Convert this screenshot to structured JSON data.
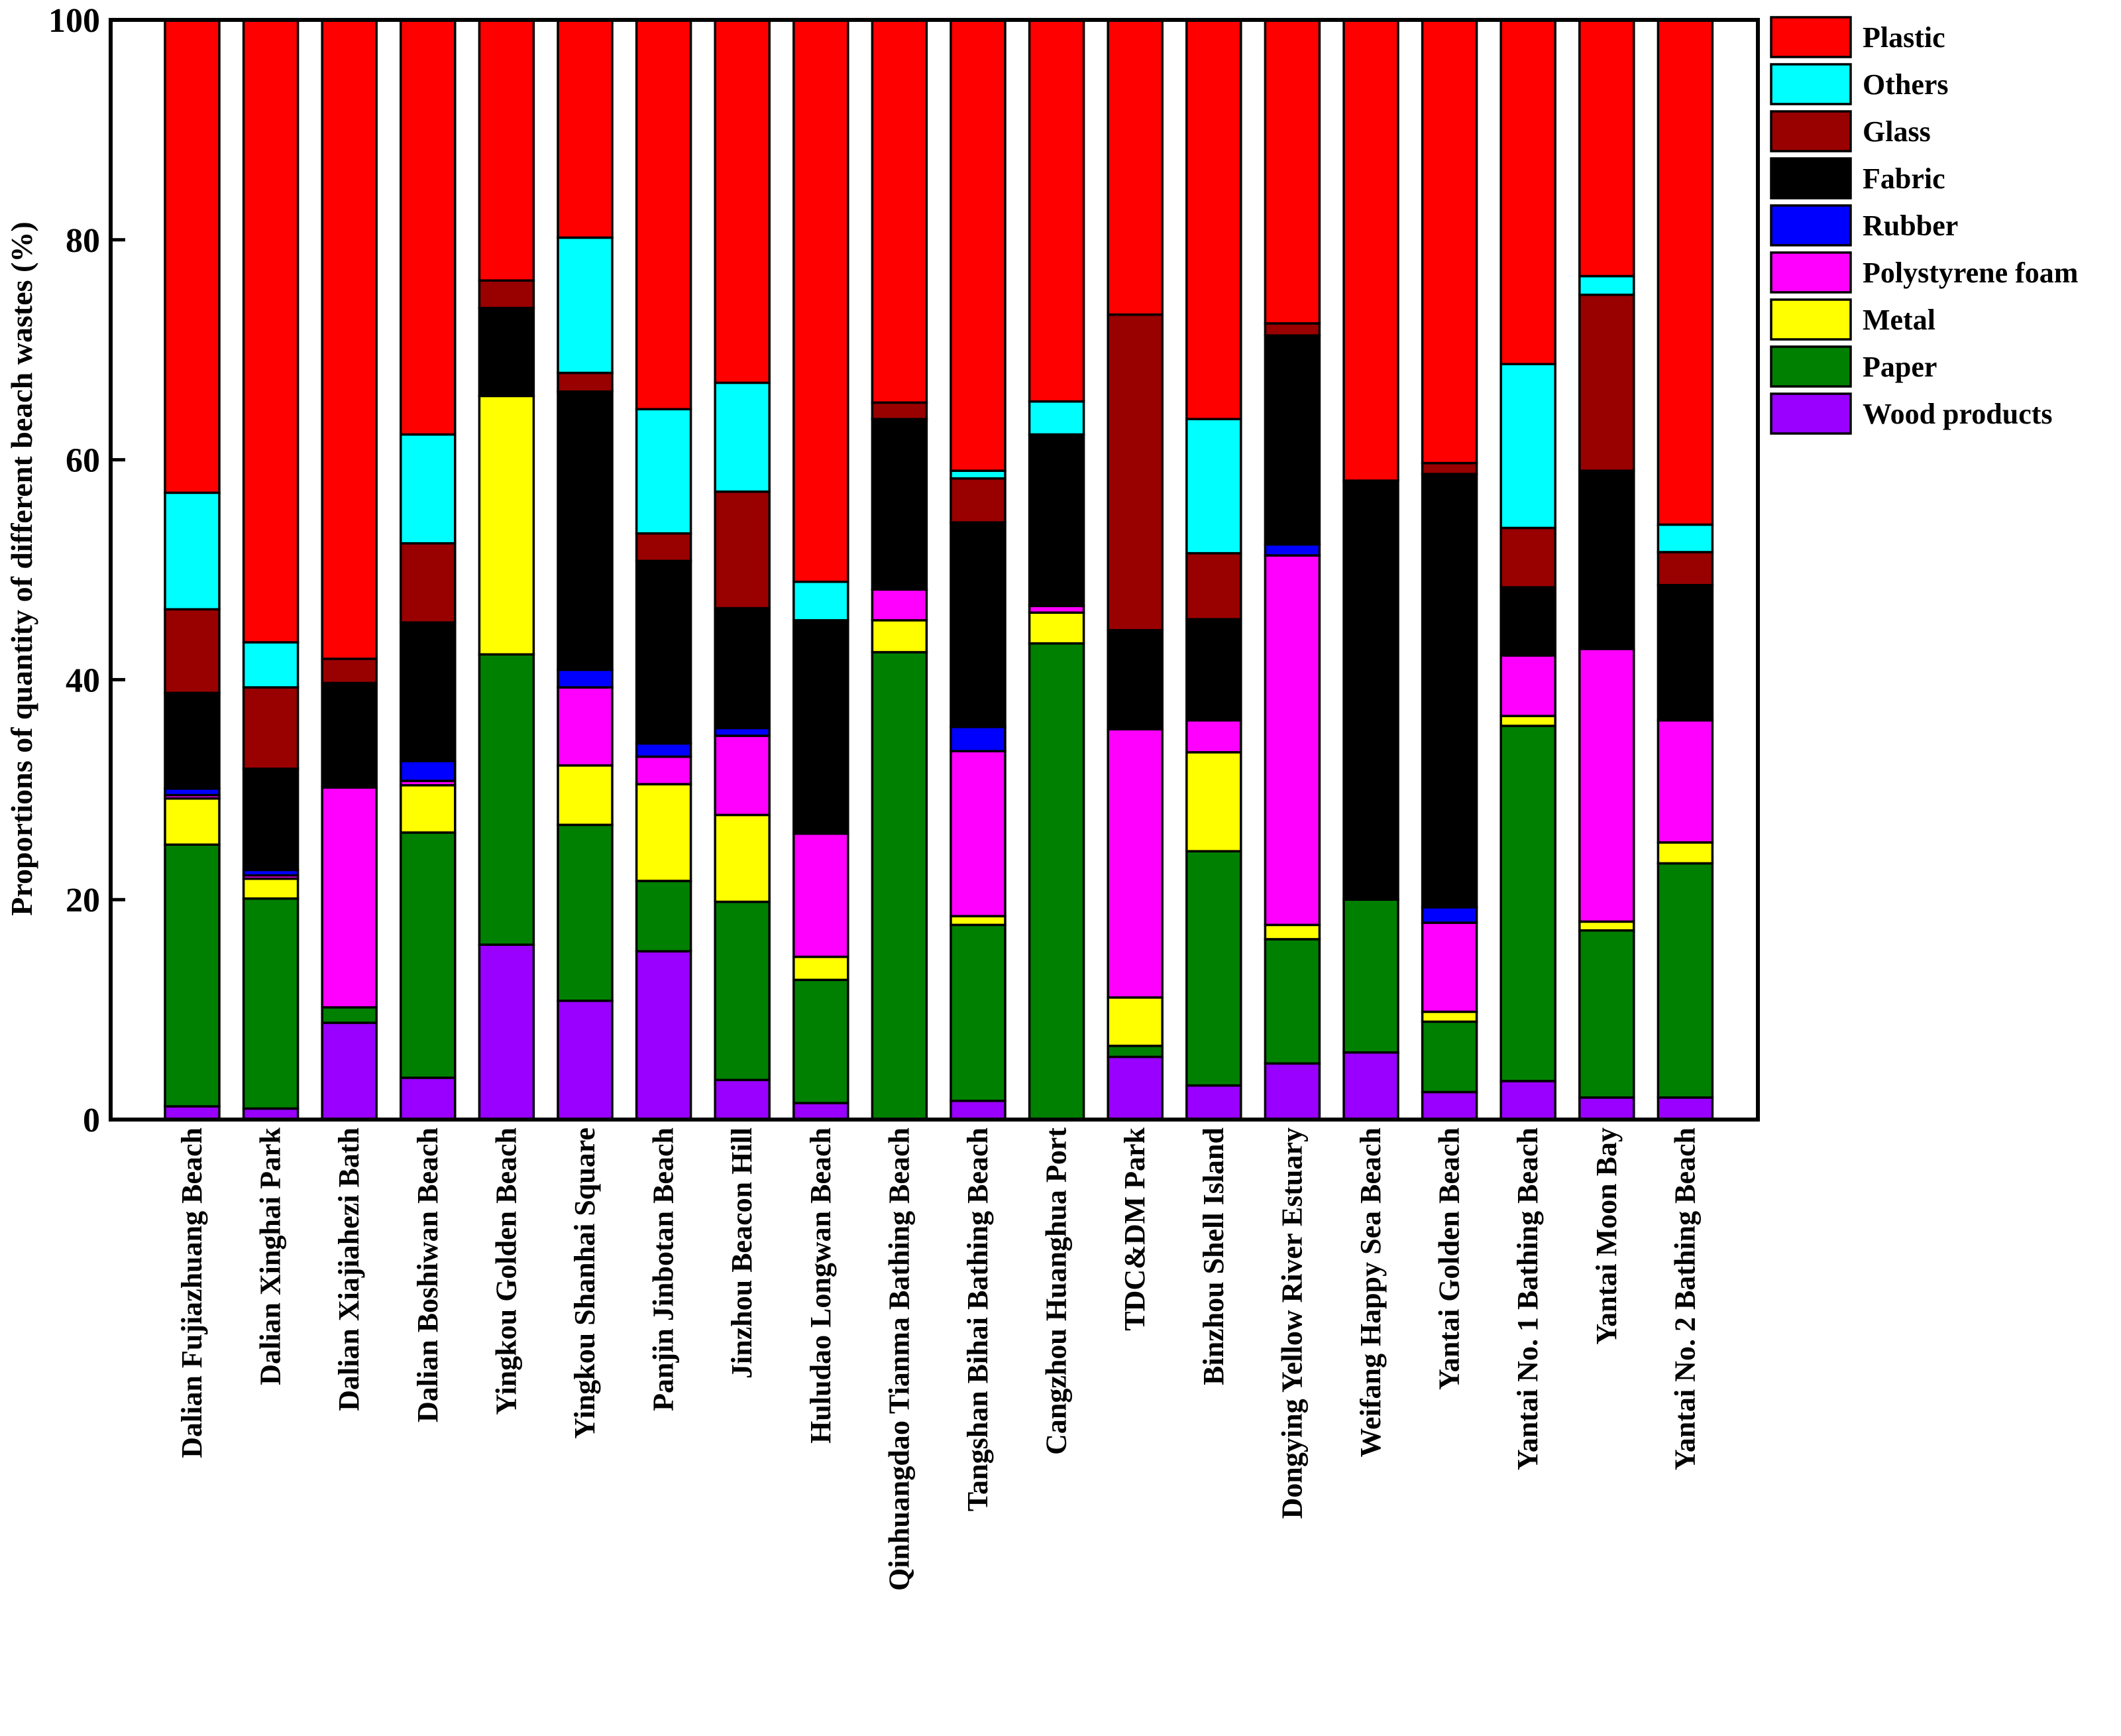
{
  "chart_data": {
    "type": "bar",
    "stacked": true,
    "title": "",
    "xlabel": "",
    "ylabel": "Proportions of quantity of different beach wastes (%)",
    "ylim": [
      0,
      100
    ],
    "yticks": [
      0,
      20,
      40,
      60,
      80,
      100
    ],
    "grid": false,
    "legend_position": "right",
    "categories": [
      "Dalian Fujiazhuang Beach",
      "Dalian Xinghai Park",
      "Dalian Xiajiahezi Bath",
      "Dalian Boshiwan Beach",
      "Yingkou Golden Beach",
      "Yingkou Shanhai Square",
      "Panjin Jinbotan Beach",
      "Jinzhou Beacon Hill",
      "Huludao Longwan Beach",
      "Qinhuangdao Tianma Bathing Beach",
      "Tangshan Bihai Bathing Beach",
      "Cangzhou Huanghua Port",
      "TDC&DM Park",
      "Binzhou Shell Island",
      "Dongying Yellow River Estuary",
      "Weifang Happy Sea Beach",
      "Yantai Golden Beach",
      "Yantai No. 1 Bathing Beach",
      "Yantai Moon Bay",
      "Yantai No. 2 Bathing Beach"
    ],
    "series": [
      {
        "name": "Wood products",
        "color": "#9900ff",
        "values": [
          1.2,
          1.0,
          8.8,
          3.8,
          15.9,
          10.8,
          15.3,
          3.6,
          1.5,
          0.0,
          1.7,
          0.0,
          5.7,
          3.1,
          5.1,
          6.1,
          2.5,
          3.5,
          2.0,
          2.0
        ]
      },
      {
        "name": "Paper",
        "color": "#008000",
        "values": [
          23.8,
          19.1,
          1.4,
          22.3,
          26.4,
          16.0,
          6.4,
          16.2,
          11.2,
          42.5,
          16.0,
          43.3,
          1.0,
          21.3,
          11.3,
          13.9,
          6.4,
          32.3,
          15.2,
          21.3
        ]
      },
      {
        "name": "Metal",
        "color": "#ffff00",
        "values": [
          4.2,
          1.8,
          0.0,
          4.3,
          23.5,
          5.4,
          8.8,
          7.9,
          2.1,
          2.9,
          0.8,
          2.8,
          4.4,
          9.0,
          1.3,
          0.0,
          0.9,
          0.9,
          0.8,
          1.9
        ]
      },
      {
        "name": "Polystyrene foam",
        "color": "#ff00ff",
        "values": [
          0.3,
          0.3,
          20.0,
          0.4,
          0.0,
          7.1,
          2.5,
          7.2,
          11.2,
          2.8,
          15.0,
          0.6,
          24.4,
          2.9,
          33.6,
          0.0,
          8.1,
          5.5,
          24.8,
          11.1
        ]
      },
      {
        "name": "Rubber",
        "color": "#0000ff",
        "values": [
          0.6,
          0.5,
          0.0,
          1.8,
          0.0,
          1.6,
          1.2,
          0.7,
          0.0,
          0.0,
          2.2,
          0.0,
          0.0,
          0.0,
          1.0,
          0.0,
          1.4,
          0.0,
          0.0,
          0.0
        ]
      },
      {
        "name": "Fabric",
        "color": "#000000",
        "values": [
          8.7,
          9.2,
          9.5,
          12.6,
          8.0,
          25.3,
          16.6,
          10.9,
          19.4,
          15.5,
          18.6,
          15.6,
          9.0,
          9.2,
          19.0,
          38.1,
          39.4,
          6.2,
          16.2,
          12.3
        ]
      },
      {
        "name": "Glass",
        "color": "#990000",
        "values": [
          7.6,
          7.4,
          2.2,
          7.2,
          2.5,
          1.7,
          2.5,
          10.6,
          0.0,
          1.5,
          4.0,
          0.0,
          28.7,
          6.0,
          1.1,
          0.0,
          1.0,
          5.4,
          16.0,
          3.0
        ]
      },
      {
        "name": "Others",
        "color": "#00ffff",
        "values": [
          10.6,
          4.1,
          0.0,
          9.9,
          0.0,
          12.3,
          11.3,
          9.9,
          3.5,
          0.0,
          0.7,
          3.0,
          0.0,
          12.2,
          0.0,
          0.0,
          0.0,
          14.9,
          1.7,
          2.5
        ]
      },
      {
        "name": "Plastic",
        "color": "#ff0000",
        "values": [
          43.0,
          56.6,
          58.1,
          37.7,
          23.7,
          19.8,
          35.4,
          33.0,
          51.1,
          34.8,
          41.0,
          34.7,
          26.8,
          36.3,
          27.6,
          41.9,
          40.3,
          31.3,
          23.3,
          45.9
        ]
      }
    ],
    "legend_order": [
      "Plastic",
      "Others",
      "Glass",
      "Fabric",
      "Rubber",
      "Polystyrene foam",
      "Metal",
      "Paper",
      "Wood products"
    ]
  }
}
